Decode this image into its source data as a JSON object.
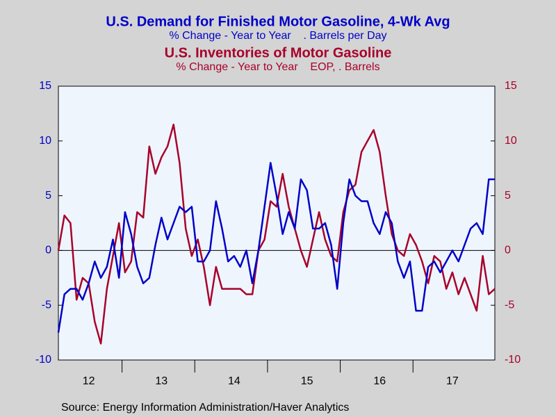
{
  "chart_data": {
    "type": "line",
    "source": "Source:  Energy Information Administration/Haver Analytics",
    "categories": [
      null,
      null,
      null,
      null,
      null,
      "12",
      null,
      null,
      null,
      null,
      null,
      null,
      null,
      null,
      null,
      null,
      null,
      "13",
      null,
      null,
      null,
      null,
      null,
      null,
      null,
      null,
      null,
      null,
      null,
      "14",
      null,
      null,
      null,
      null,
      null,
      null,
      null,
      null,
      null,
      null,
      null,
      "15",
      null,
      null,
      null,
      null,
      null,
      null,
      null,
      null,
      null,
      null,
      null,
      "16",
      null,
      null,
      null,
      null,
      null,
      null,
      null,
      null,
      null,
      null,
      null,
      "17",
      null,
      null,
      null,
      null,
      null,
      null,
      null
    ],
    "ylim": [
      -10,
      15
    ],
    "yticks": [
      -10,
      -5,
      0,
      5,
      10,
      15
    ],
    "y2lim": [
      -10,
      15
    ],
    "y2ticks": [
      -10,
      -5,
      0,
      5,
      10,
      15
    ],
    "zero_line": true,
    "series": [
      {
        "name": "U.S. Demand for Finished Motor Gasoline, 4-Wk Avg",
        "subtitle": "% Change - Year to Year    . Barrels per Day",
        "color": "#0000c8",
        "values": [
          -7.5,
          -4,
          -3.5,
          -3.5,
          -4.5,
          -3,
          -1,
          -2.5,
          -1.5,
          1,
          -2.5,
          3.5,
          1.5,
          -1.5,
          -3,
          -2.5,
          0.5,
          3,
          1,
          2.5,
          4,
          3.5,
          4,
          -1,
          -1,
          0,
          4.5,
          2,
          -1,
          -0.5,
          -1.5,
          0,
          -3,
          0,
          4,
          8,
          5,
          1.5,
          3.5,
          2,
          6.5,
          5.5,
          2,
          2,
          2.5,
          0.5,
          -3.5,
          2.5,
          6.5,
          5,
          4.5,
          4.5,
          2.5,
          1.5,
          3.5,
          2.5,
          -1,
          -2.5,
          -1,
          -5.5,
          -5.5,
          -1.5,
          -1,
          -2,
          -1,
          0,
          -1,
          0.5,
          2,
          2.5,
          1.5,
          6.5,
          6.5
        ]
      },
      {
        "name": "U.S. Inventories of Motor Gasoline",
        "subtitle": "% Change - Year to Year    EOP, . Barrels",
        "color": "#a8002a",
        "axis": "y2",
        "values": [
          0,
          3.2,
          2.5,
          -4.5,
          -2.5,
          -3,
          -6.5,
          -8.5,
          -3.5,
          -0.5,
          2.5,
          -2,
          -1,
          3.5,
          3,
          9.5,
          7,
          8.5,
          9.5,
          11.5,
          8,
          2,
          -0.5,
          1,
          -1.5,
          -5,
          -1.5,
          -3.5,
          -3.5,
          -3.5,
          -3.5,
          -4,
          -4,
          0,
          1,
          4.5,
          4,
          7,
          4,
          2,
          0,
          -1.5,
          1,
          3.5,
          1,
          -0.5,
          -1,
          3.5,
          5.5,
          6,
          9,
          10,
          11,
          9,
          5,
          1.5,
          0,
          -0.5,
          1.5,
          0.5,
          -1,
          -3,
          -0.5,
          -1,
          -3.5,
          -2,
          -4,
          -2.5,
          -4,
          -5.5,
          -0.5,
          -4,
          -3.5
        ]
      }
    ]
  }
}
